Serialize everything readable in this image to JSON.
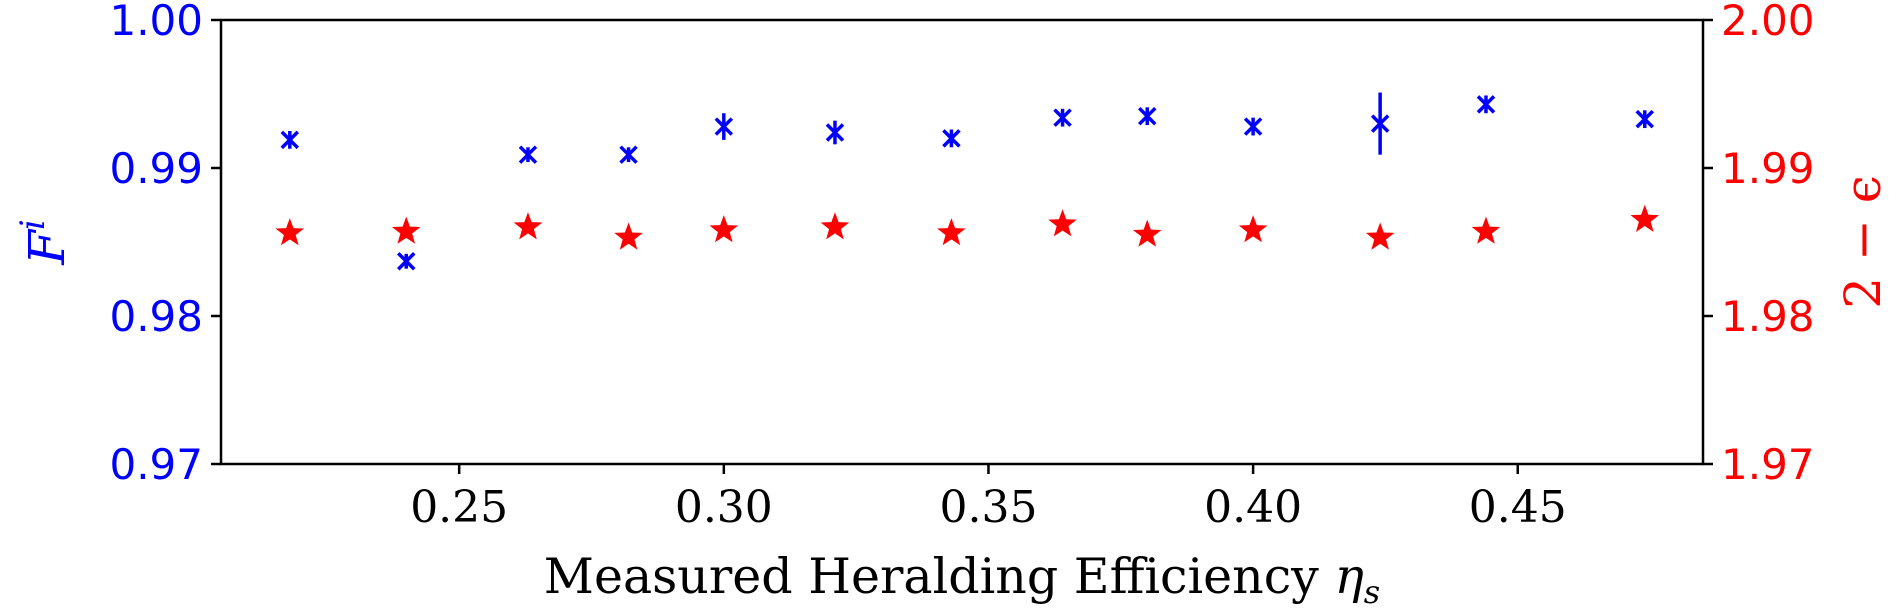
{
  "chart_data": {
    "type": "scatter",
    "xlabel": "Measured Heralding Efficiency",
    "xlabel_symbol": "η",
    "xlabel_subscript": "s",
    "xlim": [
      0.205,
      0.485
    ],
    "xticks": [
      "0.25",
      "0.30",
      "0.35",
      "0.40",
      "0.45"
    ],
    "xtick_values": [
      0.25,
      0.3,
      0.35,
      0.4,
      0.45
    ],
    "left_axis": {
      "label_main": "F",
      "label_superscript": "i",
      "color": "#0000ff",
      "ylim": [
        0.97,
        1.0
      ],
      "ticks": [
        "0.97",
        "0.98",
        "0.99",
        "1.00"
      ],
      "tick_values": [
        0.97,
        0.98,
        0.99,
        1.0
      ]
    },
    "right_axis": {
      "label": "2 − ϵ",
      "color": "#ff0000",
      "ylim": [
        1.97,
        2.0
      ],
      "ticks": [
        "1.97",
        "1.98",
        "1.99",
        "2.00"
      ],
      "tick_values": [
        1.97,
        1.98,
        1.99,
        2.0
      ]
    },
    "series": [
      {
        "axis": "left",
        "marker": "x",
        "color": "#0000ff",
        "points": [
          {
            "x": 0.218,
            "y": 0.9919,
            "err": 0.0006
          },
          {
            "x": 0.24,
            "y": 0.9837,
            "err": 0.0005
          },
          {
            "x": 0.263,
            "y": 0.9909,
            "err": 0.0005
          },
          {
            "x": 0.282,
            "y": 0.9909,
            "err": 0.0005
          },
          {
            "x": 0.3,
            "y": 0.9928,
            "err": 0.0009
          },
          {
            "x": 0.321,
            "y": 0.9924,
            "err": 0.0008
          },
          {
            "x": 0.343,
            "y": 0.992,
            "err": 0.0006
          },
          {
            "x": 0.364,
            "y": 0.9934,
            "err": 0.0006
          },
          {
            "x": 0.38,
            "y": 0.9935,
            "err": 0.0006
          },
          {
            "x": 0.4,
            "y": 0.9928,
            "err": 0.0006
          },
          {
            "x": 0.424,
            "y": 0.993,
            "err": 0.0021
          },
          {
            "x": 0.444,
            "y": 0.9943,
            "err": 0.0006
          },
          {
            "x": 0.474,
            "y": 0.9933,
            "err": 0.0006
          }
        ]
      },
      {
        "axis": "right",
        "marker": "star",
        "color": "#ff0000",
        "points": [
          {
            "x": 0.218,
            "y": 1.9856
          },
          {
            "x": 0.24,
            "y": 1.9857
          },
          {
            "x": 0.263,
            "y": 1.986
          },
          {
            "x": 0.282,
            "y": 1.9853
          },
          {
            "x": 0.3,
            "y": 1.9858
          },
          {
            "x": 0.321,
            "y": 1.986
          },
          {
            "x": 0.343,
            "y": 1.9856
          },
          {
            "x": 0.364,
            "y": 1.9862
          },
          {
            "x": 0.38,
            "y": 1.9855
          },
          {
            "x": 0.4,
            "y": 1.9858
          },
          {
            "x": 0.424,
            "y": 1.9853
          },
          {
            "x": 0.444,
            "y": 1.9857
          },
          {
            "x": 0.474,
            "y": 1.9865
          }
        ]
      }
    ]
  }
}
